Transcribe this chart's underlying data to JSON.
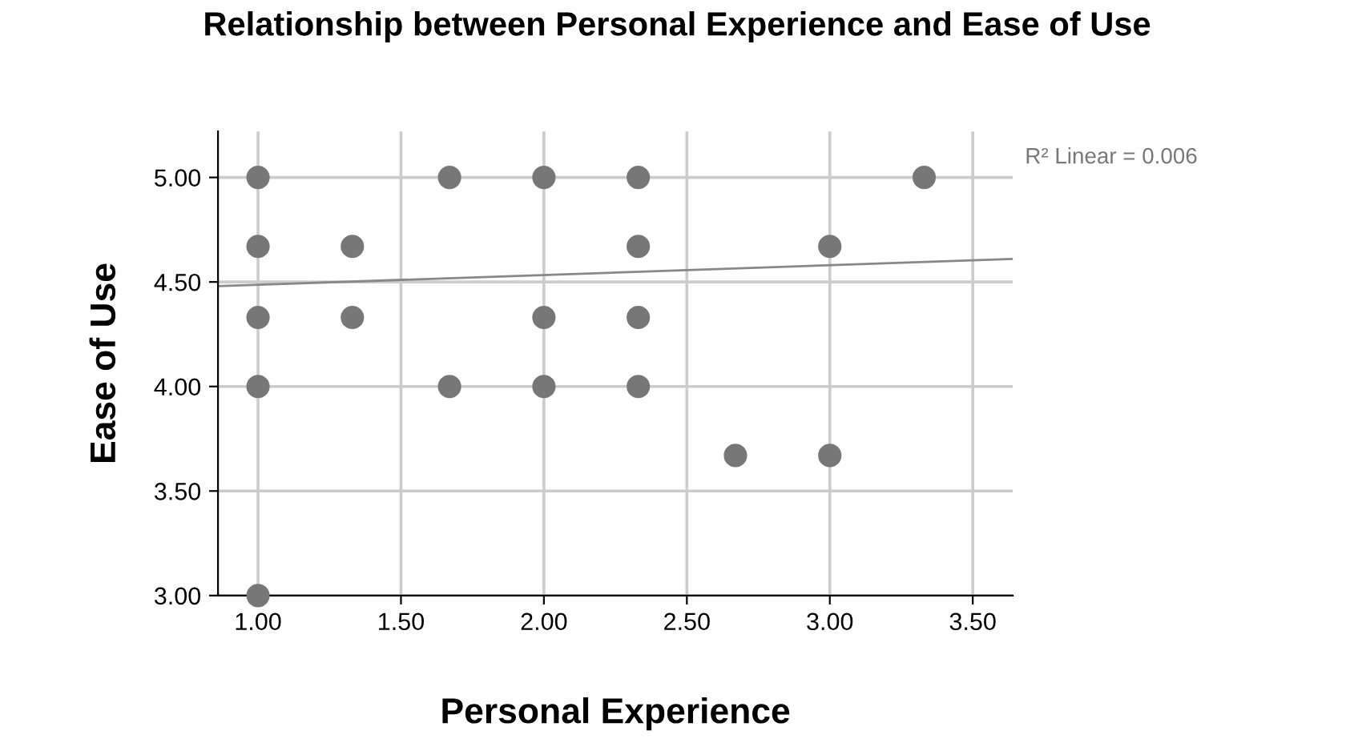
{
  "chart_data": {
    "type": "scatter",
    "title": "Relationship between Personal Experience and Ease of Use",
    "xlabel": "Personal Experience",
    "ylabel": "Ease of Use",
    "xlim": [
      0.86,
      3.64
    ],
    "ylim": [
      3.0,
      5.22
    ],
    "xticks": [
      {
        "value": 1.0,
        "label": "1.00"
      },
      {
        "value": 1.5,
        "label": "1.50"
      },
      {
        "value": 2.0,
        "label": "2.00"
      },
      {
        "value": 2.5,
        "label": "2.50"
      },
      {
        "value": 3.0,
        "label": "3.00"
      },
      {
        "value": 3.5,
        "label": "3.50"
      }
    ],
    "yticks": [
      {
        "value": 3.0,
        "label": "3.00"
      },
      {
        "value": 3.5,
        "label": "3.50"
      },
      {
        "value": 4.0,
        "label": "4.00"
      },
      {
        "value": 4.5,
        "label": "4.50"
      },
      {
        "value": 5.0,
        "label": "5.00"
      }
    ],
    "grid": true,
    "series": [
      {
        "marker": "circle",
        "color": "#777777",
        "x": [
          1,
          1,
          1,
          1,
          1,
          1.33,
          1.33,
          1.67,
          1.67,
          2,
          2,
          2,
          2.33,
          2.33,
          2.33,
          2.33,
          2.67,
          3,
          3,
          3.33
        ],
        "values": [
          5,
          4.67,
          4.33,
          4,
          3,
          4.67,
          4.33,
          5,
          4,
          5,
          4.33,
          4,
          5,
          4.67,
          4.33,
          4,
          3.67,
          4.67,
          3.67,
          5
        ]
      },
      {
        "type": "line",
        "marker": "none",
        "color": "#888888",
        "x": [
          0.86,
          3.64
        ],
        "values": [
          4.48,
          4.61
        ]
      }
    ],
    "annotations": [
      "R² Linear = 0.006"
    ]
  }
}
